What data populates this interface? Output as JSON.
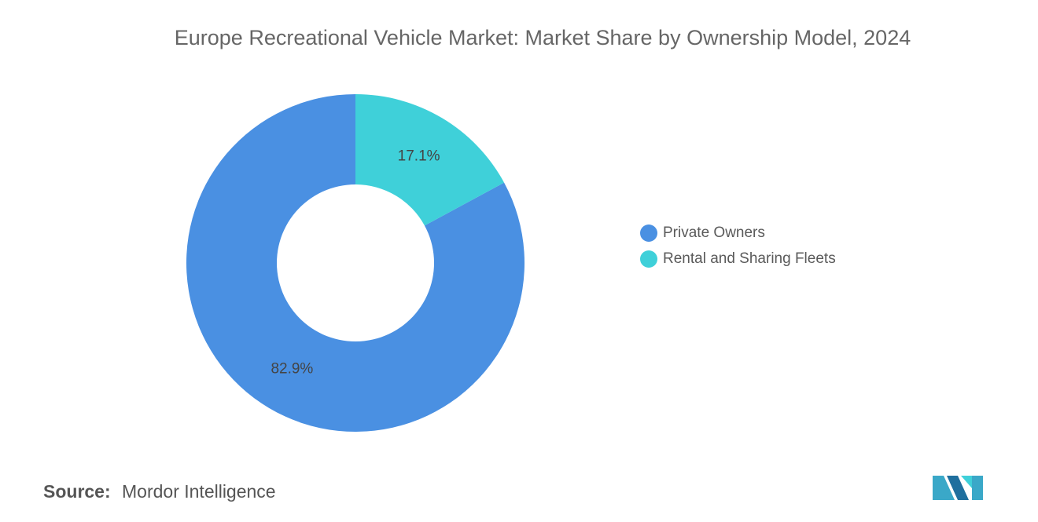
{
  "chart_data": {
    "type": "donut",
    "title": "Europe Recreational Vehicle Market: Market Share by Ownership Model, 2024",
    "categories": [
      "Private Owners",
      "Rental and Sharing Fleets"
    ],
    "values": [
      82.9,
      17.1
    ],
    "value_labels": [
      "82.9%",
      "17.1%"
    ],
    "colors": [
      "#4a90e2",
      "#3fd0d9"
    ],
    "legend": "right",
    "source_label": "Source:",
    "source": "Mordor Intelligence"
  }
}
